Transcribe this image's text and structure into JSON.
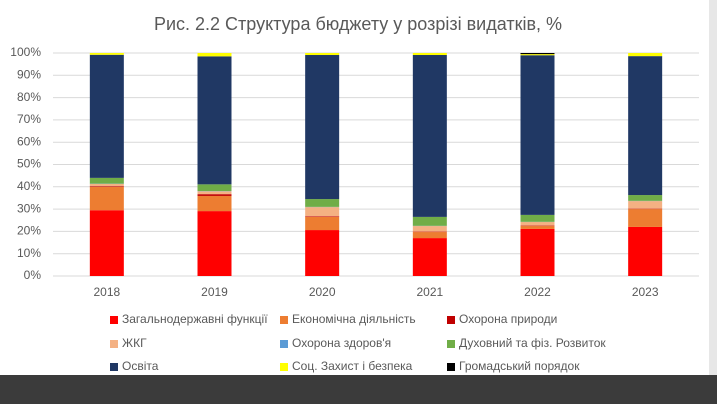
{
  "chart_data": {
    "type": "stacked_bar",
    "title": "Рис. 2.2 Структура бюджету у розрізі видатків, %",
    "categories": [
      "2018",
      "2019",
      "2020",
      "2021",
      "2022",
      "2023"
    ],
    "series": [
      {
        "name": "Загальнодержавні функції",
        "color": "#ff0000",
        "values": [
          29.5,
          29.1,
          20.6,
          17.0,
          21.1,
          22.0
        ]
      },
      {
        "name": "Економічна діяльність",
        "color": "#ed7d31",
        "values": [
          10.5,
          6.8,
          5.9,
          2.7,
          1.3,
          8.0
        ]
      },
      {
        "name": "Охорона природи",
        "color": "#c00000",
        "values": [
          0.3,
          0.8,
          0.3,
          0.2,
          0.2,
          0.2
        ]
      },
      {
        "name": "ЖКГ",
        "color": "#f4b183",
        "values": [
          1.0,
          1.3,
          4.1,
          2.5,
          1.6,
          3.4
        ]
      },
      {
        "name": "Охорона здоров'я",
        "color": "#5b9bd5",
        "values": [
          0.1,
          0.1,
          0.1,
          0.1,
          0.1,
          0.1
        ]
      },
      {
        "name": "Духовний та фіз. Розвиток",
        "color": "#70ad47",
        "values": [
          2.6,
          3.0,
          3.5,
          4.0,
          3.1,
          2.6
        ]
      },
      {
        "name": "Освіта",
        "color": "#203864",
        "values": [
          55.2,
          57.4,
          64.6,
          72.6,
          71.6,
          62.3
        ]
      },
      {
        "name": "Соц. Захист і безпека",
        "color": "#ffff00",
        "values": [
          0.8,
          1.5,
          0.9,
          0.9,
          0.5,
          1.4
        ]
      },
      {
        "name": "Громадський порядок",
        "color": "#000000",
        "values": [
          0,
          0,
          0,
          0,
          0.5,
          0
        ]
      }
    ],
    "ylim": [
      0,
      100
    ],
    "yticks": [
      {
        "value": 0,
        "label": "0%"
      },
      {
        "value": 10,
        "label": "10%"
      },
      {
        "value": 20,
        "label": "20%"
      },
      {
        "value": 30,
        "label": "30%"
      },
      {
        "value": 40,
        "label": "40%"
      },
      {
        "value": 50,
        "label": "50%"
      },
      {
        "value": 60,
        "label": "60%"
      },
      {
        "value": 70,
        "label": "70%"
      },
      {
        "value": 80,
        "label": "80%"
      },
      {
        "value": 90,
        "label": "90%"
      },
      {
        "value": 100,
        "label": "100%"
      }
    ],
    "grid": true
  }
}
